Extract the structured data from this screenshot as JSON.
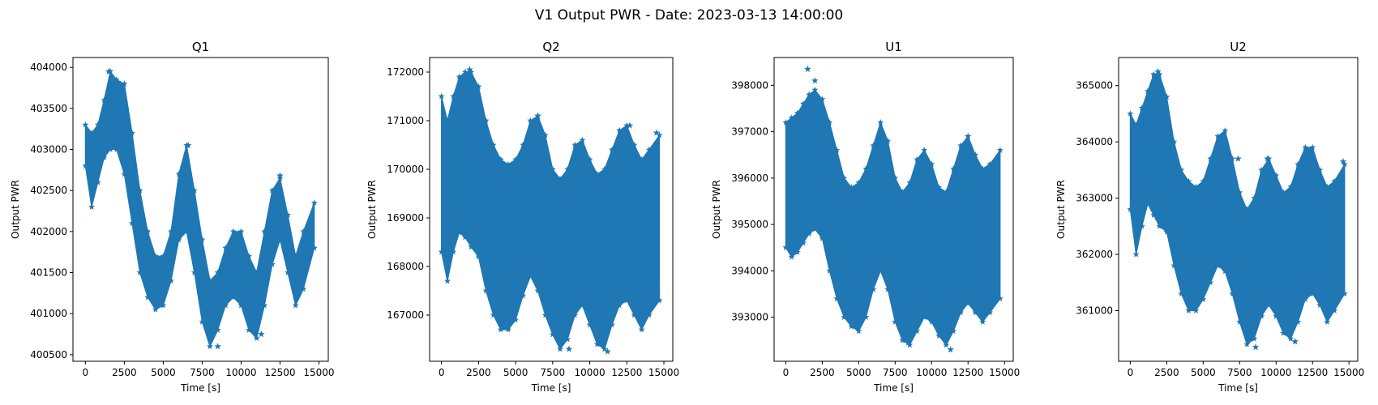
{
  "figure": {
    "title": "V1 Output PWR - Date: 2023-03-13 14:00:00",
    "series_color": "#1f77b4",
    "marker": "star"
  },
  "chart_data": [
    {
      "type": "scatter",
      "title": "Q1",
      "xlabel": "Time [s]",
      "ylabel": "Output PWR",
      "xlim": [
        -800,
        15600
      ],
      "ylim": [
        400420,
        404120
      ],
      "xticks": [
        0,
        2500,
        5000,
        7500,
        10000,
        12500,
        15000
      ],
      "yticks": [
        400500,
        401000,
        401500,
        402000,
        402500,
        403000,
        403500,
        404000
      ],
      "grid": false,
      "x": [
        0,
        400,
        800,
        1200,
        1600,
        2000,
        2500,
        3000,
        3500,
        4000,
        4500,
        5000,
        5500,
        6000,
        6500,
        7000,
        7500,
        8000,
        8500,
        9000,
        9500,
        10000,
        10500,
        11000,
        11500,
        12000,
        12500,
        13000,
        13500,
        14000,
        14700
      ],
      "upper": [
        403300,
        403200,
        403300,
        403600,
        403950,
        403850,
        403800,
        403200,
        402500,
        402000,
        401700,
        401700,
        402000,
        402700,
        403050,
        402500,
        401900,
        401400,
        401500,
        401800,
        402000,
        402000,
        401700,
        401500,
        402000,
        402500,
        402650,
        402200,
        401700,
        402000,
        402350
      ],
      "lower": [
        402800,
        402300,
        402600,
        402900,
        403000,
        403000,
        402700,
        402100,
        401500,
        401200,
        401050,
        401100,
        401400,
        401900,
        402000,
        401500,
        400900,
        400600,
        400800,
        401100,
        401200,
        401100,
        400800,
        400700,
        401100,
        401600,
        401900,
        401500,
        401100,
        401300,
        401800
      ],
      "outliers": [
        [
          1500,
          403950
        ],
        [
          6600,
          403050
        ],
        [
          8500,
          400600
        ],
        [
          11300,
          400750
        ],
        [
          12500,
          402680
        ]
      ]
    },
    {
      "type": "scatter",
      "title": "Q2",
      "xlabel": "Time [s]",
      "ylabel": "Output PWR",
      "xlim": [
        -800,
        15600
      ],
      "ylim": [
        166050,
        172300
      ],
      "xticks": [
        0,
        2500,
        5000,
        7500,
        10000,
        12500,
        15000
      ],
      "yticks": [
        167000,
        168000,
        169000,
        170000,
        171000,
        172000
      ],
      "grid": false,
      "x": [
        0,
        400,
        800,
        1200,
        1600,
        2000,
        2500,
        3000,
        3500,
        4000,
        4500,
        5000,
        5500,
        6000,
        6500,
        7000,
        7500,
        8000,
        8500,
        9000,
        9500,
        10000,
        10500,
        11000,
        11500,
        12000,
        12500,
        13000,
        13500,
        14000,
        14700
      ],
      "upper": [
        171500,
        171000,
        171500,
        171900,
        172000,
        172000,
        171700,
        171000,
        170500,
        170200,
        170100,
        170200,
        170500,
        171000,
        171100,
        170700,
        170000,
        169800,
        170000,
        170500,
        170600,
        170200,
        169900,
        170000,
        170400,
        170800,
        170900,
        170500,
        170200,
        170400,
        170700
      ],
      "lower": [
        168300,
        167700,
        168300,
        168700,
        168600,
        168400,
        168200,
        167500,
        167000,
        166700,
        166700,
        166900,
        167400,
        167800,
        167500,
        167000,
        166600,
        166300,
        166500,
        167000,
        167200,
        166800,
        166400,
        166300,
        166800,
        167200,
        167300,
        167000,
        166700,
        167000,
        167300
      ],
      "outliers": [
        [
          1900,
          172050
        ],
        [
          6500,
          171100
        ],
        [
          8600,
          166300
        ],
        [
          11200,
          166250
        ],
        [
          12700,
          170900
        ],
        [
          14500,
          170750
        ]
      ]
    },
    {
      "type": "scatter",
      "title": "U1",
      "xlabel": "Time [s]",
      "ylabel": "Output PWR",
      "xlim": [
        -800,
        15600
      ],
      "ylim": [
        392050,
        398600
      ],
      "xticks": [
        0,
        2500,
        5000,
        7500,
        10000,
        12500,
        15000
      ],
      "yticks": [
        393000,
        394000,
        395000,
        396000,
        397000,
        398000
      ],
      "grid": false,
      "x": [
        0,
        400,
        800,
        1200,
        1600,
        2000,
        2500,
        3000,
        3500,
        4000,
        4500,
        5000,
        5500,
        6000,
        6500,
        7000,
        7500,
        8000,
        8500,
        9000,
        9500,
        10000,
        10500,
        11000,
        11500,
        12000,
        12500,
        13000,
        13500,
        14000,
        14700
      ],
      "upper": [
        397200,
        397300,
        397400,
        397600,
        397800,
        397900,
        397700,
        397200,
        396600,
        396000,
        395800,
        395900,
        396200,
        396700,
        397200,
        396800,
        396000,
        395700,
        395900,
        396400,
        396600,
        396300,
        395800,
        395700,
        396200,
        396700,
        396900,
        396500,
        396200,
        396300,
        396600
      ],
      "lower": [
        394500,
        394300,
        394400,
        394600,
        394800,
        394900,
        394700,
        394000,
        393400,
        393000,
        392800,
        392700,
        393000,
        393600,
        394000,
        393600,
        392900,
        392500,
        392400,
        392700,
        393000,
        392900,
        392600,
        392400,
        392700,
        393100,
        393300,
        393100,
        392900,
        393100,
        393400
      ],
      "outliers": [
        [
          1500,
          398350
        ],
        [
          2000,
          398100
        ],
        [
          8400,
          392450
        ],
        [
          11300,
          392300
        ],
        [
          12500,
          396900
        ]
      ]
    },
    {
      "type": "scatter",
      "title": "U2",
      "xlabel": "Time [s]",
      "ylabel": "Output PWR",
      "xlim": [
        -800,
        15600
      ],
      "ylim": [
        360100,
        365500
      ],
      "xticks": [
        0,
        2500,
        5000,
        7500,
        10000,
        12500,
        15000
      ],
      "yticks": [
        361000,
        362000,
        363000,
        364000,
        365000
      ],
      "grid": false,
      "x": [
        0,
        400,
        800,
        1200,
        1600,
        2000,
        2500,
        3000,
        3500,
        4000,
        4500,
        5000,
        5500,
        6000,
        6500,
        7000,
        7500,
        8000,
        8500,
        9000,
        9500,
        10000,
        10500,
        11000,
        11500,
        12000,
        12500,
        13000,
        13500,
        14000,
        14700
      ],
      "upper": [
        364500,
        364300,
        364600,
        364900,
        365200,
        365200,
        364800,
        364000,
        363500,
        363300,
        363200,
        363300,
        363700,
        364100,
        364200,
        363700,
        363100,
        362800,
        363000,
        363500,
        363700,
        363400,
        363100,
        363200,
        363600,
        363900,
        363900,
        363500,
        363200,
        363300,
        363600
      ],
      "lower": [
        362800,
        362000,
        362500,
        362900,
        362700,
        362500,
        362400,
        361800,
        361300,
        361000,
        361000,
        361200,
        361500,
        361800,
        361700,
        361300,
        360800,
        360400,
        360500,
        360900,
        361100,
        360900,
        360600,
        360500,
        360800,
        361200,
        361300,
        361100,
        360800,
        361000,
        361300
      ],
      "outliers": [
        [
          1900,
          365250
        ],
        [
          7400,
          363700
        ],
        [
          8600,
          360350
        ],
        [
          9400,
          363700
        ],
        [
          11300,
          360450
        ],
        [
          14600,
          363650
        ]
      ]
    }
  ]
}
